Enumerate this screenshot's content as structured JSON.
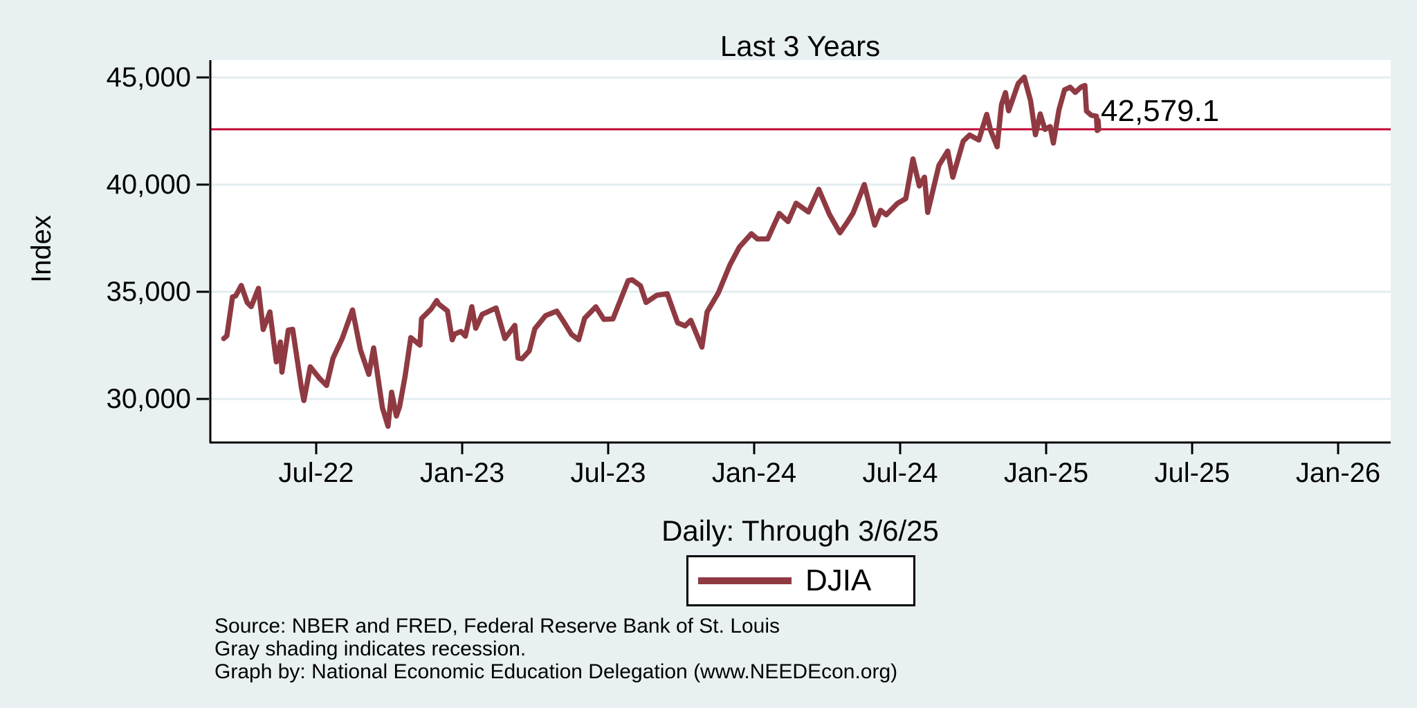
{
  "colors": {
    "background": "#e9f0f2",
    "plot_background": "#ffffff",
    "grid": "#e3edef",
    "axis": "#000000",
    "series_line": "#8f3a42",
    "reference_line": "#c10534",
    "text": "#000000"
  },
  "notes": {
    "lines": [
      "Source: NBER and FRED, Federal Reserve Bank of St. Louis",
      "Gray shading indicates recession.",
      "Graph by: National Economic Education Delegation (www.NEEDEcon.org)"
    ]
  },
  "chart_data": {
    "type": "line",
    "title": "Last 3 Years",
    "subtitle": "Daily: Through 3/6/25",
    "ylabel": "Index",
    "xlabel": "",
    "grid": "horizontal-only",
    "legend_position": "bottom-center",
    "y_ticks": [
      30000,
      35000,
      40000,
      45000
    ],
    "ylim_approx": [
      28000,
      45800
    ],
    "x_ticks": [
      {
        "label": "Jul-22",
        "date": "2022-07-01"
      },
      {
        "label": "Jan-23",
        "date": "2023-01-01"
      },
      {
        "label": "Jul-23",
        "date": "2023-07-01"
      },
      {
        "label": "Jan-24",
        "date": "2024-01-01"
      },
      {
        "label": "Jul-24",
        "date": "2024-07-01"
      },
      {
        "label": "Jan-25",
        "date": "2025-01-01"
      },
      {
        "label": "Jul-25",
        "date": "2025-07-01"
      },
      {
        "label": "Jan-26",
        "date": "2026-01-01"
      }
    ],
    "reference_line": {
      "value": 42579.1,
      "label": "42,579.1"
    },
    "series": [
      {
        "name": "DJIA",
        "points": [
          [
            "2022-03-07",
            32817
          ],
          [
            "2022-03-11",
            32944
          ],
          [
            "2022-03-18",
            34755
          ],
          [
            "2022-03-22",
            34807
          ],
          [
            "2022-03-29",
            35294
          ],
          [
            "2022-04-06",
            34497
          ],
          [
            "2022-04-11",
            34308
          ],
          [
            "2022-04-20",
            35160
          ],
          [
            "2022-04-26",
            33240
          ],
          [
            "2022-05-04",
            34061
          ],
          [
            "2022-05-12",
            31730
          ],
          [
            "2022-05-17",
            32654
          ],
          [
            "2022-05-19",
            31253
          ],
          [
            "2022-05-27",
            33213
          ],
          [
            "2022-06-02",
            33248
          ],
          [
            "2022-06-13",
            30517
          ],
          [
            "2022-06-16",
            29927
          ],
          [
            "2022-06-24",
            31500
          ],
          [
            "2022-07-05",
            30968
          ],
          [
            "2022-07-14",
            30630
          ],
          [
            "2022-07-22",
            31899
          ],
          [
            "2022-08-03",
            32813
          ],
          [
            "2022-08-16",
            34152
          ],
          [
            "2022-08-26",
            32283
          ],
          [
            "2022-09-06",
            31145
          ],
          [
            "2022-09-12",
            32381
          ],
          [
            "2022-09-23",
            29590
          ],
          [
            "2022-09-30",
            28725
          ],
          [
            "2022-10-04",
            30316
          ],
          [
            "2022-10-10",
            29203
          ],
          [
            "2022-10-14",
            29634
          ],
          [
            "2022-10-21",
            31083
          ],
          [
            "2022-10-28",
            32862
          ],
          [
            "2022-11-09",
            32513
          ],
          [
            "2022-11-11",
            33748
          ],
          [
            "2022-11-23",
            34194
          ],
          [
            "2022-11-30",
            34590
          ],
          [
            "2022-12-02",
            34430
          ],
          [
            "2022-12-13",
            34108
          ],
          [
            "2022-12-19",
            32757
          ],
          [
            "2022-12-22",
            33027
          ],
          [
            "2022-12-30",
            33147
          ],
          [
            "2023-01-05",
            32930
          ],
          [
            "2023-01-13",
            34303
          ],
          [
            "2023-01-18",
            33297
          ],
          [
            "2023-01-26",
            33949
          ],
          [
            "2023-02-02",
            34054
          ],
          [
            "2023-02-13",
            34246
          ],
          [
            "2023-02-24",
            32817
          ],
          [
            "2023-03-06",
            33431
          ],
          [
            "2023-03-10",
            31910
          ],
          [
            "2023-03-15",
            31875
          ],
          [
            "2023-03-24",
            32238
          ],
          [
            "2023-03-31",
            33274
          ],
          [
            "2023-04-14",
            33886
          ],
          [
            "2023-04-28",
            34098
          ],
          [
            "2023-05-05",
            33674
          ],
          [
            "2023-05-16",
            33012
          ],
          [
            "2023-05-25",
            32764
          ],
          [
            "2023-06-02",
            33763
          ],
          [
            "2023-06-16",
            34299
          ],
          [
            "2023-06-26",
            33714
          ],
          [
            "2023-07-07",
            33735
          ],
          [
            "2023-07-26",
            35520
          ],
          [
            "2023-07-31",
            35559
          ],
          [
            "2023-08-11",
            35281
          ],
          [
            "2023-08-18",
            34501
          ],
          [
            "2023-09-01",
            34838
          ],
          [
            "2023-09-14",
            34907
          ],
          [
            "2023-09-27",
            33550
          ],
          [
            "2023-10-06",
            33408
          ],
          [
            "2023-10-13",
            33670
          ],
          [
            "2023-10-27",
            32418
          ],
          [
            "2023-11-03",
            34061
          ],
          [
            "2023-11-17",
            34947
          ],
          [
            "2023-12-01",
            36246
          ],
          [
            "2023-12-13",
            37090
          ],
          [
            "2023-12-28",
            37710
          ],
          [
            "2024-01-05",
            37466
          ],
          [
            "2024-01-18",
            37469
          ],
          [
            "2024-01-25",
            38049
          ],
          [
            "2024-02-02",
            38654
          ],
          [
            "2024-02-13",
            38273
          ],
          [
            "2024-02-23",
            39132
          ],
          [
            "2024-03-08",
            38723
          ],
          [
            "2024-03-21",
            39781
          ],
          [
            "2024-04-04",
            38597
          ],
          [
            "2024-04-17",
            37753
          ],
          [
            "2024-04-26",
            38240
          ],
          [
            "2024-05-03",
            38676
          ],
          [
            "2024-05-17",
            40004
          ],
          [
            "2024-05-30",
            38111
          ],
          [
            "2024-06-07",
            38799
          ],
          [
            "2024-06-14",
            38589
          ],
          [
            "2024-06-28",
            39119
          ],
          [
            "2024-07-08",
            39344
          ],
          [
            "2024-07-17",
            41198
          ],
          [
            "2024-07-25",
            39935
          ],
          [
            "2024-08-01",
            40348
          ],
          [
            "2024-08-05",
            38703
          ],
          [
            "2024-08-19",
            40897
          ],
          [
            "2024-08-30",
            41563
          ],
          [
            "2024-09-06",
            40345
          ],
          [
            "2024-09-19",
            42025
          ],
          [
            "2024-09-27",
            42313
          ],
          [
            "2024-10-08",
            42080
          ],
          [
            "2024-10-18",
            43275
          ],
          [
            "2024-10-23",
            42515
          ],
          [
            "2024-10-31",
            41763
          ],
          [
            "2024-11-06",
            43730
          ],
          [
            "2024-11-11",
            44293
          ],
          [
            "2024-11-15",
            43445
          ],
          [
            "2024-11-27",
            44722
          ],
          [
            "2024-12-04",
            45014
          ],
          [
            "2024-12-12",
            43914
          ],
          [
            "2024-12-18",
            42327
          ],
          [
            "2024-12-24",
            43297
          ],
          [
            "2024-12-30",
            42573
          ],
          [
            "2025-01-06",
            42707
          ],
          [
            "2025-01-10",
            41938
          ],
          [
            "2025-01-17",
            43488
          ],
          [
            "2025-01-24",
            44424
          ],
          [
            "2025-01-31",
            44545
          ],
          [
            "2025-02-07",
            44303
          ],
          [
            "2025-02-14",
            44546
          ],
          [
            "2025-02-19",
            44627
          ],
          [
            "2025-02-21",
            43428
          ],
          [
            "2025-02-27",
            43239
          ],
          [
            "2025-03-03",
            43191
          ],
          [
            "2025-03-04",
            42521
          ],
          [
            "2025-03-05",
            43007
          ],
          [
            "2025-03-06",
            42579
          ]
        ]
      }
    ]
  }
}
